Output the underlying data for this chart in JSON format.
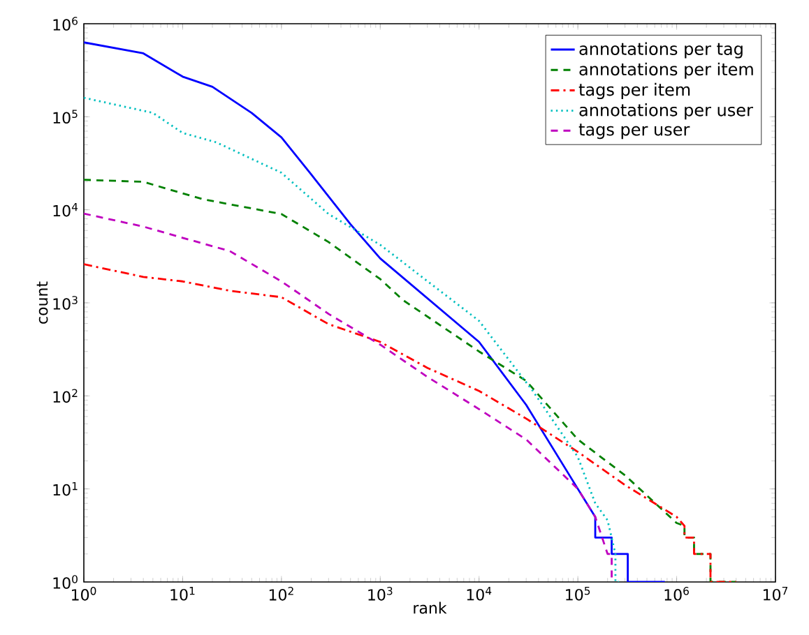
{
  "chart_data": {
    "type": "line",
    "xlabel": "rank",
    "ylabel": "count",
    "log": "xy",
    "grid": false,
    "legend": "top right",
    "xlim": [
      1,
      10000000
    ],
    "ylim": [
      1,
      1000000
    ],
    "xticks": [
      {
        "value": 1,
        "label": "10$^{0}$"
      },
      {
        "value": 10,
        "label": "10$^{1}$"
      },
      {
        "value": 100,
        "label": "10$^{2}$"
      },
      {
        "value": 1000,
        "label": "10$^{3}$"
      },
      {
        "value": 10000,
        "label": "10$^{4}$"
      },
      {
        "value": 100000,
        "label": "10$^{5}$"
      },
      {
        "value": 1000000,
        "label": "10$^{6}$"
      },
      {
        "value": 10000000,
        "label": "10$^{7}$"
      }
    ],
    "yticks": [
      {
        "value": 1,
        "label": "10$^{0}$"
      },
      {
        "value": 10,
        "label": "10$^{1}$"
      },
      {
        "value": 100,
        "label": "10$^{2}$"
      },
      {
        "value": 1000,
        "label": "10$^{3}$"
      },
      {
        "value": 10000,
        "label": "10$^{4}$"
      },
      {
        "value": 100000,
        "label": "10$^{5}$"
      },
      {
        "value": 1000000,
        "label": "10$^{6}$"
      }
    ],
    "series": [
      {
        "name": "annotations per tag",
        "color": "#0000ff",
        "line_style": "solid",
        "x": [
          1,
          4,
          10,
          20,
          50,
          100,
          200,
          500,
          1000,
          10000,
          30000,
          100000,
          150000,
          150000,
          220000,
          220000,
          320000,
          320000,
          760000
        ],
        "values": [
          630000,
          480000,
          270000,
          210000,
          110000,
          60000,
          24000,
          7000,
          3000,
          380,
          80,
          10,
          5,
          3,
          3,
          2,
          2,
          1,
          1
        ]
      },
      {
        "name": "annotations per item",
        "color": "#008000",
        "line_style": "dashed",
        "x": [
          1,
          4,
          10,
          16,
          100,
          300,
          1000,
          1700,
          10000,
          30000,
          100000,
          300000,
          1000000,
          1200000,
          1200000,
          1500000,
          1500000,
          2200000,
          2200000,
          4000000
        ],
        "values": [
          21000,
          20000,
          15000,
          13000,
          9000,
          4500,
          1800,
          1070,
          300,
          145,
          34,
          14,
          4.3,
          4,
          3,
          3,
          2,
          2,
          1,
          1
        ]
      },
      {
        "name": "tags per item",
        "color": "#ff0000",
        "line_style": "dashdot",
        "x": [
          1,
          4,
          10,
          30,
          100,
          300,
          1000,
          3000,
          10000,
          30000,
          100000,
          300000,
          1000000,
          1200000,
          1200000,
          1500000,
          1500000,
          2200000,
          2200000,
          4000000
        ],
        "values": [
          2600,
          1900,
          1700,
          1350,
          1150,
          590,
          380,
          200,
          113,
          57,
          25,
          11,
          5,
          4,
          3,
          3,
          2,
          2,
          1,
          1
        ]
      },
      {
        "name": "annotations per user",
        "color": "#00bfbf",
        "line_style": "dotted",
        "x": [
          1,
          5,
          10,
          22,
          100,
          300,
          1000,
          10000,
          35000,
          100000,
          150000,
          200000,
          240000,
          240000,
          260000
        ],
        "values": [
          160000,
          110000,
          67000,
          53000,
          25000,
          9000,
          4200,
          640,
          113,
          22,
          7,
          4.6,
          2,
          1,
          1
        ]
      },
      {
        "name": "tags per user",
        "color": "#bf00bf",
        "line_style": "dashed",
        "x": [
          1,
          4,
          10,
          30,
          100,
          300,
          1000,
          3000,
          10000,
          30000,
          100000,
          150000,
          200000,
          220000,
          220000
        ],
        "values": [
          9100,
          6600,
          5000,
          3600,
          1700,
          760,
          355,
          160,
          72,
          34,
          10,
          5,
          2,
          2,
          1
        ]
      }
    ]
  }
}
